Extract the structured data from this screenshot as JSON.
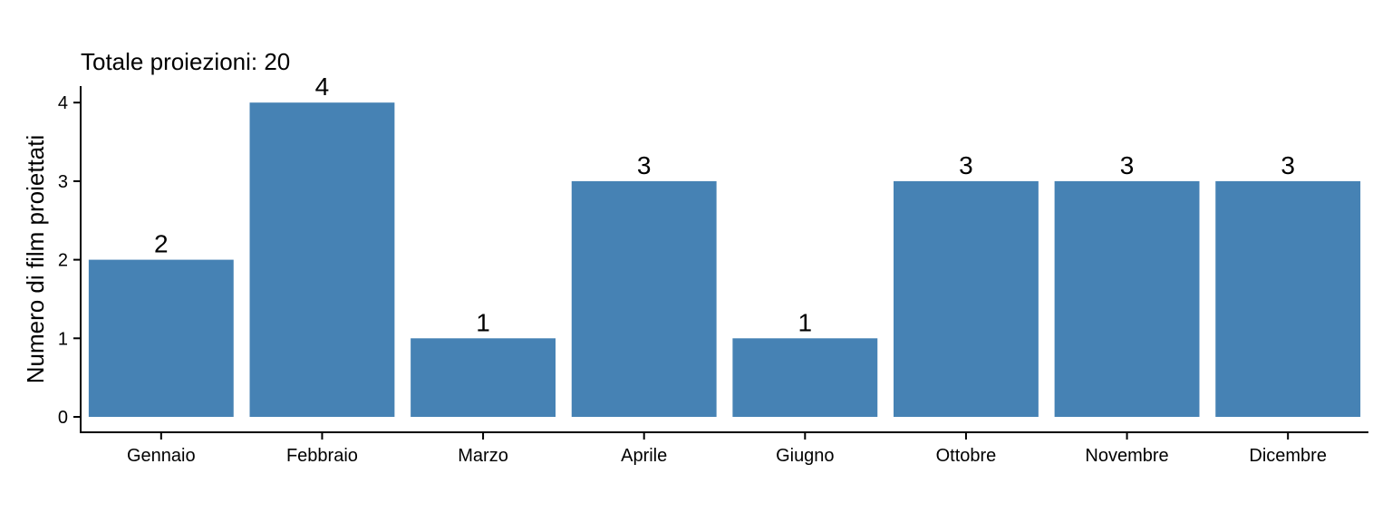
{
  "chart_data": {
    "type": "bar",
    "title": "Totale proiezioni: 20",
    "xlabel": "",
    "ylabel": "Numero di film proiettati",
    "categories": [
      "Gennaio",
      "Febbraio",
      "Marzo",
      "Aprile",
      "Giugno",
      "Ottobre",
      "Novembre",
      "Dicembre"
    ],
    "values": [
      2,
      4,
      1,
      3,
      1,
      3,
      3,
      3
    ],
    "data_labels": [
      "2",
      "4",
      "1",
      "3",
      "1",
      "3",
      "3",
      "3"
    ],
    "ylim": [
      0,
      4
    ],
    "yticks": [
      0,
      1,
      2,
      3,
      4
    ],
    "ytick_labels": [
      "0",
      "1",
      "2",
      "3",
      "4"
    ],
    "grid": false,
    "legend": "none",
    "bar_color": "#4682b4"
  }
}
